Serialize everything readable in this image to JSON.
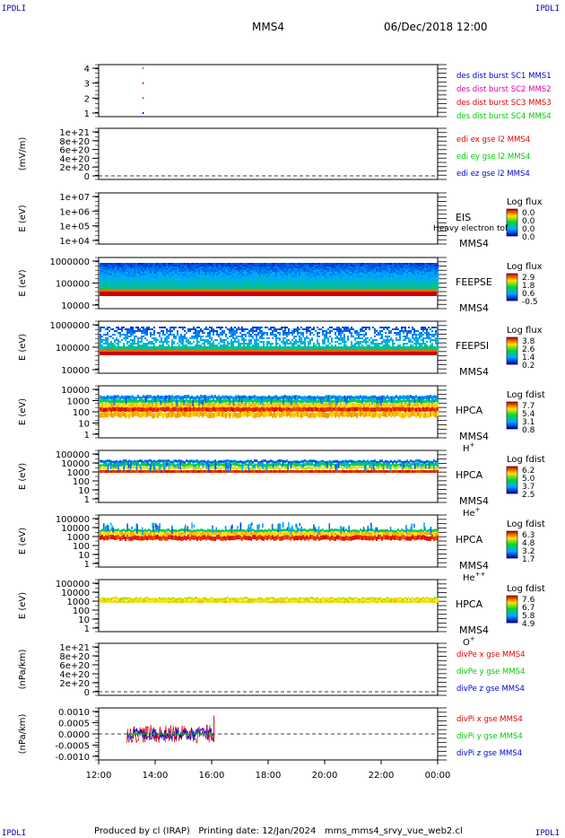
{
  "corner_label": "IPDLI",
  "header": {
    "spacecraft": "MMS4",
    "date": "06/Dec/2018 12:00"
  },
  "footer": {
    "text": "Produced by cl (IRAP)   Printing date: 12/Jan/2024   mms_mms4_srvy_vue_web2.cl"
  },
  "colors": {
    "red": "#dd0000",
    "green": "#00cc00",
    "blue": "#0000cc",
    "magenta": "#dd00aa"
  },
  "time_axis": {
    "ticks": [
      "12:00",
      "14:00",
      "16:00",
      "18:00",
      "20:00",
      "22:00",
      "00:00"
    ]
  },
  "panels": [
    {
      "id": "dist",
      "ylabel": "",
      "yticks": [
        "4",
        "3",
        "2",
        "1"
      ],
      "legend": [
        {
          "text": "des dist burst SC1 MMS1",
          "color": "#0000cc"
        },
        {
          "text": "des dist burst SC2 MMS2",
          "color": "#dd00aa"
        },
        {
          "text": "des dist burst SC3 MMS3",
          "color": "#dd0000"
        },
        {
          "text": "des dist burst SC4 MMS4",
          "color": "#00cc00"
        }
      ]
    },
    {
      "id": "edi",
      "ylabel": "(mV/m)",
      "yticks": [
        "1e+21",
        "8e+20",
        "6e+20",
        "4e+20",
        "2e+20",
        "0"
      ],
      "legend": [
        {
          "text": "edi ex gse l2 MMS4",
          "color": "#dd0000"
        },
        {
          "text": "edi ey gse l2 MMS4",
          "color": "#00cc00"
        },
        {
          "text": "edi ez gse l2 MMS4",
          "color": "#0000cc"
        }
      ]
    },
    {
      "id": "eis",
      "ylabel": "E (eV)",
      "yticks": [
        "1e+07",
        "1e+06",
        "1e+05",
        "1e+04"
      ],
      "instrument": [
        "EIS",
        "MMS4"
      ],
      "overlay": "Heavy electron tof",
      "cb_title": "Log flux",
      "cb_ticks": [
        "0.0",
        "0.0",
        "0.0",
        "0.0"
      ]
    },
    {
      "id": "feepse",
      "ylabel": "E (eV)",
      "yticks": [
        "1000000",
        "100000",
        "10000"
      ],
      "instrument": [
        "FEEPSE",
        "MMS4"
      ],
      "cb_title": "Log flux",
      "cb_ticks": [
        "2.9",
        "1.8",
        "0.6",
        "-0.5"
      ]
    },
    {
      "id": "feepsi",
      "ylabel": "E (eV)",
      "yticks": [
        "1000000",
        "100000",
        "10000"
      ],
      "instrument": [
        "FEEPSI",
        "MMS4"
      ],
      "cb_title": "Log flux",
      "cb_ticks": [
        "3.8",
        "2.6",
        "1.4",
        "0.2"
      ]
    },
    {
      "id": "hpca_h",
      "ylabel": "E (eV)",
      "yticks": [
        "10000",
        "1000",
        "100",
        "10",
        "1"
      ],
      "instrument": [
        "HPCA",
        "MMS4"
      ],
      "species": "H",
      "sup": "+",
      "cb_title": "Log fdist",
      "cb_ticks": [
        "7.7",
        "5.4",
        "3.1",
        "0.8"
      ]
    },
    {
      "id": "hpca_he",
      "ylabel": "E (eV)",
      "yticks": [
        "100000",
        "10000",
        "1000",
        "100",
        "10",
        "1"
      ],
      "instrument": [
        "HPCA",
        "MMS4"
      ],
      "species": "He",
      "sup": "+",
      "cb_title": "Log fdist",
      "cb_ticks": [
        "6.2",
        "5.0",
        "3.7",
        "2.5"
      ]
    },
    {
      "id": "hpca_hepp",
      "ylabel": "E (eV)",
      "yticks": [
        "100000",
        "10000",
        "1000",
        "100",
        "10",
        "1"
      ],
      "instrument": [
        "HPCA",
        "MMS4"
      ],
      "species": "He",
      "sup": "++",
      "cb_title": "Log fdist",
      "cb_ticks": [
        "6.3",
        "4.8",
        "3.2",
        "1.7"
      ]
    },
    {
      "id": "hpca_o",
      "ylabel": "E (eV)",
      "yticks": [
        "100000",
        "10000",
        "1000",
        "100",
        "10",
        "1"
      ],
      "instrument": [
        "HPCA",
        "MMS4"
      ],
      "species": "O",
      "sup": "+",
      "cb_title": "Log fdist",
      "cb_ticks": [
        "7.6",
        "6.7",
        "5.8",
        "4.9"
      ]
    },
    {
      "id": "divpe",
      "ylabel": "(nPa/km)",
      "yticks": [
        "1e+21",
        "8e+20",
        "6e+20",
        "4e+20",
        "2e+20",
        "0"
      ],
      "legend": [
        {
          "text": "divPe x gse MMS4",
          "color": "#dd0000"
        },
        {
          "text": "divPe y gse MMS4",
          "color": "#00cc00"
        },
        {
          "text": "divPe z gse MMS4",
          "color": "#0000cc"
        }
      ]
    },
    {
      "id": "divpi",
      "ylabel": "(nPa/km)",
      "yticks": [
        "0.0010",
        "0.0005",
        "0.0000",
        "-0.0005",
        "-0.0010"
      ],
      "legend": [
        {
          "text": "divPi x gse MMS4",
          "color": "#dd0000"
        },
        {
          "text": "divPi y gse MMS4",
          "color": "#00cc00"
        },
        {
          "text": "divPi z gse MMS4",
          "color": "#0000cc"
        }
      ]
    }
  ],
  "chart_data": [
    {
      "type": "scatter",
      "panel": "dist",
      "x_range": [
        "12:00",
        "00:00"
      ],
      "series": [
        {
          "name": "des dist burst SC1 MMS1",
          "x": [
            "13:33"
          ],
          "y": [
            1
          ]
        },
        {
          "name": "des dist burst SC2 MMS2",
          "x": [
            "13:33"
          ],
          "y": [
            2
          ]
        },
        {
          "name": "des dist burst SC3 MMS3",
          "x": [
            "13:33"
          ],
          "y": [
            3
          ]
        },
        {
          "name": "des dist burst SC4 MMS4",
          "x": [
            "13:33"
          ],
          "y": [
            4
          ]
        }
      ]
    },
    {
      "type": "heatmap",
      "panel": "feepse",
      "scale": "log",
      "ylim": [
        10000,
        1000000
      ],
      "band_energy_eV": [
        40000,
        1000000
      ],
      "low_energy_edge_eV": 40000
    },
    {
      "type": "heatmap",
      "panel": "feepsi",
      "scale": "log",
      "ylim": [
        10000,
        1000000
      ],
      "band_energy_eV": [
        60000,
        600000
      ],
      "low_energy_edge_eV": 60000
    },
    {
      "type": "line",
      "panel": "divpi",
      "ylim": [
        -0.0011,
        0.0011
      ],
      "data_interval": [
        "13:00",
        "16:05"
      ],
      "series": [
        {
          "name": "divPi x gse MMS4"
        },
        {
          "name": "divPi y gse MMS4"
        },
        {
          "name": "divPi z gse MMS4"
        }
      ]
    }
  ]
}
